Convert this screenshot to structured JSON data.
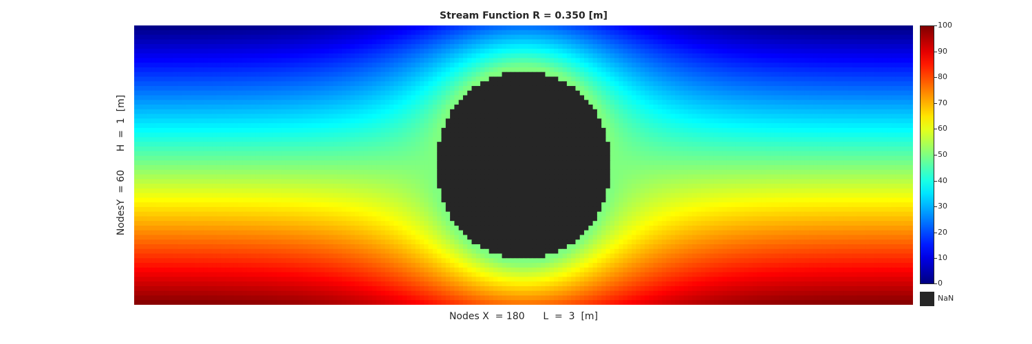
{
  "chart_data": {
    "type": "heatmap",
    "title": "Stream Function R = 0.350 [m]",
    "xlabel": "Nodes X  = 180      L  =  3  [m]",
    "ylabel": "NodesY  = 60      H  =  1  [m]",
    "grid": {
      "nx": 180,
      "ny": 60,
      "length_m": 3,
      "height_m": 1
    },
    "obstacle": {
      "shape": "circle",
      "radius_m": 0.35,
      "center_m": [
        1.5,
        0.5
      ],
      "fill": "NaN"
    },
    "colormap": "jet",
    "clim": [
      0,
      100
    ],
    "colorbar": {
      "ticks": [
        0,
        10,
        20,
        30,
        40,
        50,
        60,
        70,
        80,
        90,
        100
      ],
      "tick_labels": [
        "0",
        "10",
        "20",
        "30",
        "40",
        "50",
        "60",
        "70",
        "80",
        "90",
        "100"
      ],
      "nan_label": "NaN",
      "nan_color": "#262626"
    }
  }
}
